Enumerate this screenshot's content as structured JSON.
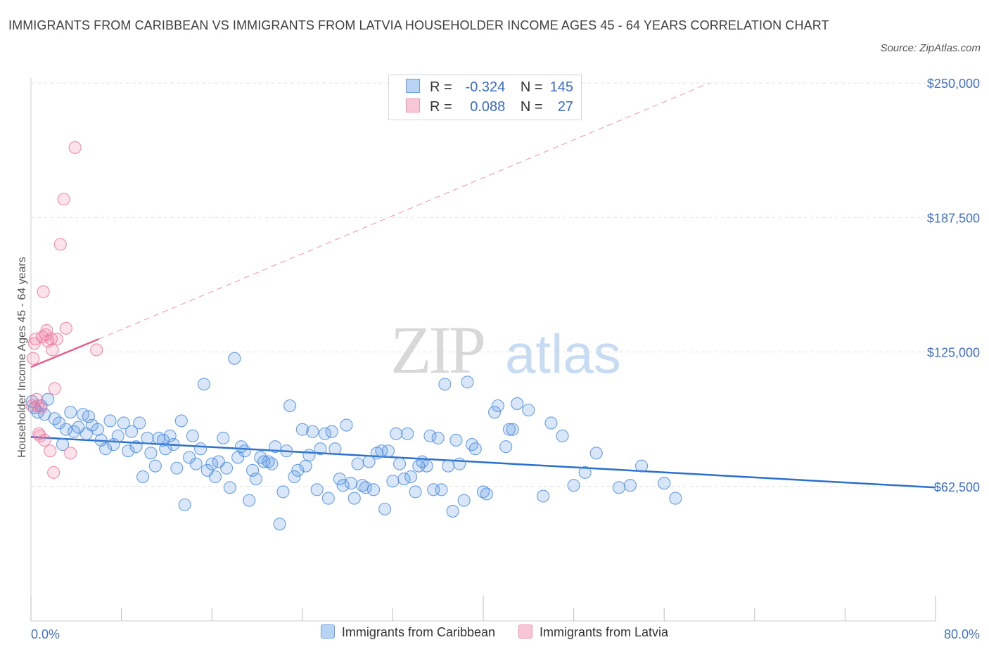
{
  "title": "IMMIGRANTS FROM CARIBBEAN VS IMMIGRANTS FROM LATVIA HOUSEHOLDER INCOME AGES 45 - 64 YEARS CORRELATION CHART",
  "source": "Source: ZipAtlas.com",
  "watermark": {
    "zip": "ZIP",
    "atlas": "atlas"
  },
  "legend": {
    "rows": [
      {
        "r_label": "R =",
        "r_value": "-0.324",
        "n_label": "N =",
        "n_value": "145"
      },
      {
        "r_label": "R =",
        "r_value": "0.088",
        "n_label": "N =",
        "n_value": "27"
      }
    ]
  },
  "bottom_legend": [
    "Immigrants from Caribbean",
    "Immigrants from Latvia"
  ],
  "chart_data": {
    "type": "scatter",
    "ylabel": "Householder Income Ages 45 - 64 years",
    "x_axis_labels": {
      "min": "0.0%",
      "max": "80.0%"
    },
    "xlim": [
      0,
      80
    ],
    "ylim": [
      0,
      250000
    ],
    "y_ticks": [
      {
        "value": 62500,
        "label": "$62,500"
      },
      {
        "value": 125000,
        "label": "$125,000"
      },
      {
        "value": 187500,
        "label": "$187,500"
      },
      {
        "value": 250000,
        "label": "$250,000"
      }
    ],
    "grid": true,
    "colors": {
      "caribbean": "#4f8fde",
      "latvia": "#f07aa0",
      "caribbean_line": "#2a6fcc",
      "latvia_line": "#e8628e",
      "tick_text": "#4472c4"
    },
    "series": [
      {
        "name": "Immigrants from Caribbean",
        "trend": {
          "x0": 0,
          "y0": 85500,
          "x1": 80,
          "y1": 62000,
          "style": "solid"
        },
        "points": [
          [
            0.1,
            102000
          ],
          [
            0.3,
            99000
          ],
          [
            0.6,
            97000
          ],
          [
            0.9,
            100000
          ],
          [
            1.2,
            96000
          ],
          [
            1.5,
            103000
          ],
          [
            2.1,
            94000
          ],
          [
            2.5,
            92000
          ],
          [
            2.8,
            82000
          ],
          [
            3.1,
            89000
          ],
          [
            3.5,
            97000
          ],
          [
            3.8,
            88000
          ],
          [
            4.2,
            90000
          ],
          [
            4.6,
            96000
          ],
          [
            4.9,
            87000
          ],
          [
            5.1,
            95000
          ],
          [
            5.4,
            91000
          ],
          [
            5.9,
            89000
          ],
          [
            6.2,
            84000
          ],
          [
            6.6,
            80000
          ],
          [
            7.0,
            93000
          ],
          [
            7.3,
            82000
          ],
          [
            7.7,
            86000
          ],
          [
            8.2,
            92000
          ],
          [
            8.6,
            79000
          ],
          [
            8.9,
            88000
          ],
          [
            9.3,
            81000
          ],
          [
            9.6,
            92000
          ],
          [
            9.9,
            67000
          ],
          [
            10.3,
            85000
          ],
          [
            10.6,
            78000
          ],
          [
            11.0,
            72000
          ],
          [
            11.3,
            85000
          ],
          [
            11.7,
            84000
          ],
          [
            11.9,
            80000
          ],
          [
            12.3,
            86000
          ],
          [
            12.6,
            82000
          ],
          [
            12.9,
            71000
          ],
          [
            13.3,
            93000
          ],
          [
            13.6,
            54000
          ],
          [
            14.0,
            76000
          ],
          [
            14.3,
            86000
          ],
          [
            14.6,
            73000
          ],
          [
            15.0,
            80000
          ],
          [
            15.3,
            110000
          ],
          [
            15.6,
            70000
          ],
          [
            16.0,
            73000
          ],
          [
            16.3,
            67000
          ],
          [
            16.6,
            74000
          ],
          [
            17.0,
            85000
          ],
          [
            17.3,
            71000
          ],
          [
            17.6,
            62000
          ],
          [
            18.0,
            122000
          ],
          [
            18.3,
            76000
          ],
          [
            18.6,
            81000
          ],
          [
            18.9,
            79000
          ],
          [
            19.3,
            56000
          ],
          [
            19.6,
            70000
          ],
          [
            19.9,
            66000
          ],
          [
            20.3,
            76000
          ],
          [
            20.6,
            74000
          ],
          [
            21.0,
            74000
          ],
          [
            21.3,
            73000
          ],
          [
            21.6,
            81000
          ],
          [
            22.0,
            45000
          ],
          [
            22.3,
            60000
          ],
          [
            22.6,
            79000
          ],
          [
            22.9,
            100000
          ],
          [
            23.3,
            67000
          ],
          [
            23.6,
            70000
          ],
          [
            24.0,
            89000
          ],
          [
            24.3,
            72000
          ],
          [
            24.6,
            77000
          ],
          [
            24.9,
            88000
          ],
          [
            25.3,
            61000
          ],
          [
            25.6,
            80000
          ],
          [
            26.0,
            87000
          ],
          [
            26.3,
            57000
          ],
          [
            26.6,
            88000
          ],
          [
            26.9,
            80000
          ],
          [
            27.3,
            66000
          ],
          [
            27.6,
            63000
          ],
          [
            27.9,
            91000
          ],
          [
            28.3,
            64000
          ],
          [
            28.6,
            57000
          ],
          [
            28.9,
            73000
          ],
          [
            29.3,
            63000
          ],
          [
            29.6,
            62000
          ],
          [
            29.9,
            74000
          ],
          [
            30.3,
            61000
          ],
          [
            30.6,
            78000
          ],
          [
            31.0,
            79000
          ],
          [
            31.3,
            52000
          ],
          [
            31.6,
            79000
          ],
          [
            32.0,
            65000
          ],
          [
            32.3,
            87000
          ],
          [
            32.6,
            73000
          ],
          [
            33.0,
            66000
          ],
          [
            33.3,
            87000
          ],
          [
            33.6,
            67000
          ],
          [
            34.0,
            60000
          ],
          [
            34.3,
            72000
          ],
          [
            34.6,
            74000
          ],
          [
            35.0,
            72000
          ],
          [
            35.3,
            86000
          ],
          [
            35.6,
            61000
          ],
          [
            36.0,
            85000
          ],
          [
            36.3,
            61000
          ],
          [
            36.6,
            110000
          ],
          [
            36.9,
            72000
          ],
          [
            37.3,
            51000
          ],
          [
            37.6,
            84000
          ],
          [
            37.9,
            73000
          ],
          [
            38.3,
            56000
          ],
          [
            38.6,
            111000
          ],
          [
            39.0,
            82000
          ],
          [
            39.3,
            80000
          ],
          [
            40.0,
            60000
          ],
          [
            40.3,
            59000
          ],
          [
            41.0,
            97000
          ],
          [
            41.3,
            100000
          ],
          [
            42.0,
            81000
          ],
          [
            42.3,
            89000
          ],
          [
            42.6,
            89000
          ],
          [
            43.0,
            101000
          ],
          [
            44.0,
            98000
          ],
          [
            45.3,
            58000
          ],
          [
            46.0,
            92000
          ],
          [
            47.0,
            86000
          ],
          [
            48.0,
            63000
          ],
          [
            49.0,
            69000
          ],
          [
            50.0,
            78000
          ],
          [
            52.0,
            62000
          ],
          [
            53.0,
            63000
          ],
          [
            54.0,
            72000
          ],
          [
            56.0,
            64000
          ],
          [
            57.0,
            57000
          ]
        ]
      },
      {
        "name": "Immigrants from Latvia",
        "trend": {
          "x0": 0,
          "y0": 118000,
          "x1": 6,
          "y1": 131000,
          "style": "solid",
          "dashed_extension": {
            "x1": 60,
            "y1": 250000
          }
        },
        "points": [
          [
            0.1,
            100000
          ],
          [
            0.2,
            122000
          ],
          [
            0.3,
            129000
          ],
          [
            0.4,
            131000
          ],
          [
            0.5,
            103000
          ],
          [
            0.6,
            100000
          ],
          [
            0.7,
            87000
          ],
          [
            0.8,
            86000
          ],
          [
            0.9,
            99000
          ],
          [
            1.0,
            132000
          ],
          [
            1.1,
            153000
          ],
          [
            1.2,
            84000
          ],
          [
            1.3,
            133000
          ],
          [
            1.4,
            135000
          ],
          [
            1.5,
            130000
          ],
          [
            1.7,
            79000
          ],
          [
            1.8,
            131000
          ],
          [
            1.9,
            126000
          ],
          [
            2.0,
            69000
          ],
          [
            2.1,
            108000
          ],
          [
            2.3,
            131000
          ],
          [
            2.6,
            175000
          ],
          [
            2.9,
            196000
          ],
          [
            3.1,
            136000
          ],
          [
            3.5,
            78000
          ],
          [
            3.9,
            220000
          ],
          [
            5.8,
            126000
          ]
        ]
      }
    ]
  }
}
